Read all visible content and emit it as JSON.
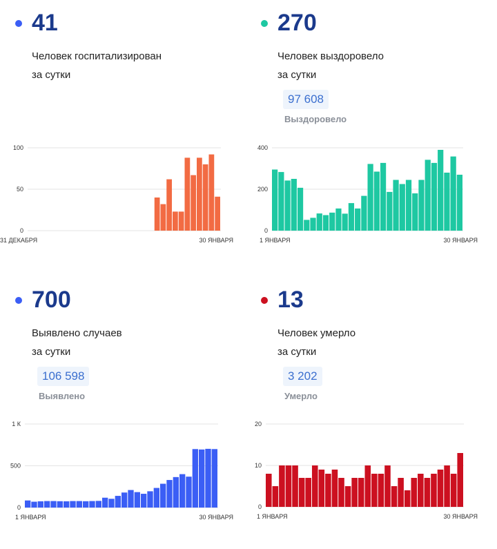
{
  "colors": {
    "hospitalized": "#f26b43",
    "recovered": "#1ec8a2",
    "cases": "#3b5ef5",
    "deaths": "#cc1020",
    "headline": "#1b3a8c",
    "total_text": "#3b6fcf",
    "total_bg": "#eef4fc",
    "label_gray": "#8a8f98"
  },
  "panels": {
    "hospitalized": {
      "value": "41",
      "desc_line1": "Человек госпитализирован",
      "desc_line2": "за сутки"
    },
    "recovered": {
      "value": "270",
      "desc_line1": "Человек выздоровело",
      "desc_line2": "за сутки",
      "total": "97 608",
      "total_label": "Выздоровело"
    },
    "cases": {
      "value": "700",
      "desc_line1": "Выявлено случаев",
      "desc_line2": "за сутки",
      "total": "106 598",
      "total_label": "Выявлено"
    },
    "deaths": {
      "value": "13",
      "desc_line1": "Человек умерло",
      "desc_line2": "за сутки",
      "total": "3 202",
      "total_label": "Умерло"
    }
  },
  "chart_data": [
    {
      "id": "hospitalized",
      "type": "bar",
      "color": "#f26b43",
      "ylim": [
        0,
        100
      ],
      "yticks": [
        0,
        50,
        100
      ],
      "ytick_labels": [
        "0",
        "50",
        "100"
      ],
      "x_start_label": "31 ДЕКАБРЯ",
      "x_end_label": "30 ЯНВАРЯ",
      "grid": true,
      "values": [
        null,
        null,
        null,
        null,
        null,
        null,
        null,
        null,
        null,
        null,
        null,
        null,
        null,
        null,
        null,
        null,
        null,
        null,
        null,
        null,
        null,
        40,
        32,
        62,
        23,
        23,
        88,
        67,
        88,
        80,
        92,
        41
      ]
    },
    {
      "id": "recovered",
      "type": "bar",
      "color": "#1ec8a2",
      "ylim": [
        0,
        400
      ],
      "yticks": [
        0,
        200,
        400
      ],
      "ytick_labels": [
        "0",
        "200",
        "400"
      ],
      "x_start_label": "1 ЯНВАРЯ",
      "x_end_label": "30 ЯНВАРЯ",
      "grid": true,
      "values": [
        295,
        283,
        242,
        250,
        207,
        52,
        62,
        83,
        75,
        87,
        107,
        82,
        133,
        107,
        168,
        322,
        285,
        327,
        187,
        245,
        225,
        245,
        180,
        245,
        342,
        327,
        390,
        280,
        358,
        270
      ]
    },
    {
      "id": "cases",
      "type": "bar",
      "color": "#3b5ef5",
      "ylim": [
        0,
        1000
      ],
      "yticks": [
        0,
        500,
        1000
      ],
      "ytick_labels": [
        "0",
        "500",
        "1 К"
      ],
      "x_start_label": "1 ЯНВАРЯ",
      "x_end_label": "30 ЯНВАРЯ",
      "grid": true,
      "values": [
        85,
        70,
        75,
        78,
        78,
        76,
        75,
        78,
        78,
        76,
        78,
        80,
        118,
        105,
        140,
        180,
        210,
        185,
        165,
        195,
        235,
        285,
        330,
        365,
        400,
        370,
        700,
        695,
        703,
        700
      ]
    },
    {
      "id": "deaths",
      "type": "bar",
      "color": "#cc1020",
      "ylim": [
        0,
        20
      ],
      "yticks": [
        0,
        10,
        20
      ],
      "ytick_labels": [
        "0",
        "10",
        "20"
      ],
      "x_start_label": "1 ЯНВАРЯ",
      "x_end_label": "30 ЯНВАРЯ",
      "grid": true,
      "values": [
        8,
        5,
        10,
        10,
        10,
        7,
        7,
        10,
        9,
        8,
        9,
        7,
        5,
        7,
        7,
        10,
        8,
        8,
        10,
        5,
        7,
        4,
        7,
        8,
        7,
        8,
        9,
        10,
        8,
        13
      ]
    }
  ]
}
